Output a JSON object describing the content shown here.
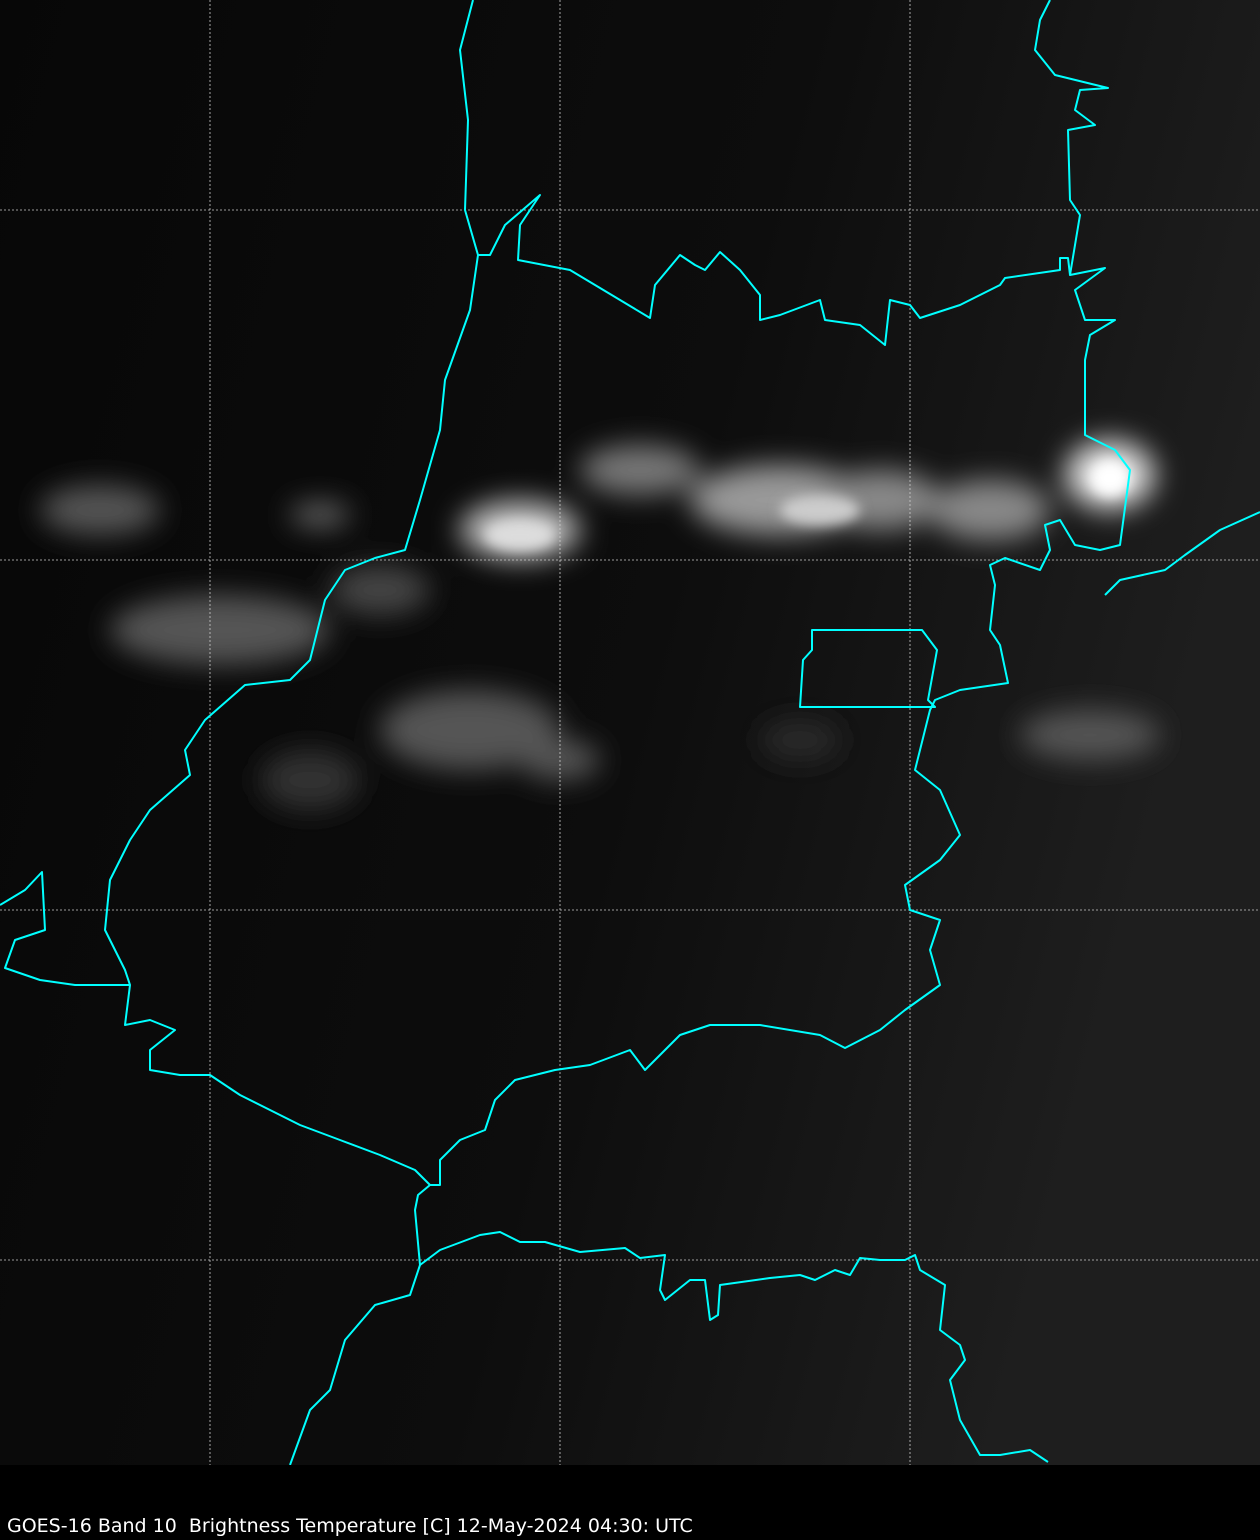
{
  "caption": "GOES-16 Band 10  Brightness Temperature [C] 12-May-2024 04:30: UTC",
  "colors": {
    "border": "#00ffff",
    "gridline": "#cccccc",
    "background": "#000000",
    "caption_text": "#ffffff"
  },
  "map": {
    "type": "satellite-imagery",
    "colormap": "grayscale",
    "graticule": "dashed"
  }
}
